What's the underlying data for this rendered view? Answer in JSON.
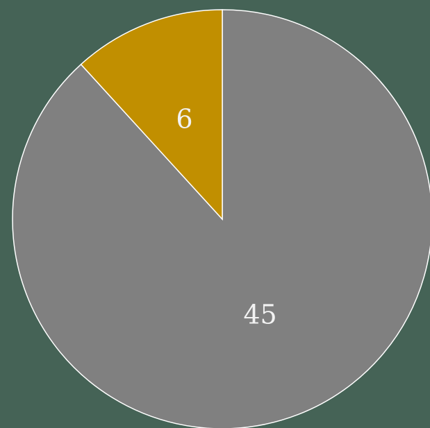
{
  "chart_data": {
    "type": "pie",
    "values": [
      45,
      6
    ],
    "colors": [
      "#808080",
      "#c18f00"
    ],
    "start_angle": 0,
    "direction": "clockwise",
    "background": "#456356"
  }
}
